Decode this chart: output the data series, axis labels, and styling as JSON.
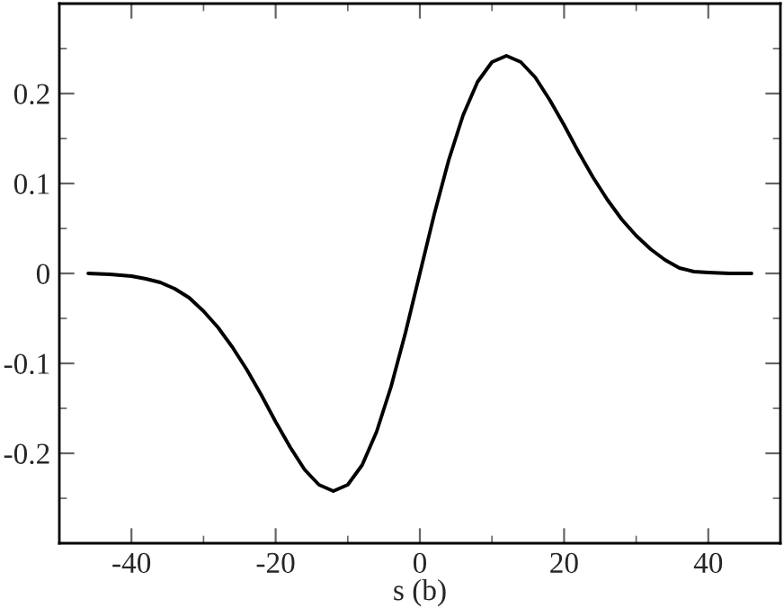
{
  "chart_data": {
    "type": "line",
    "xlabel": "s (b)",
    "xlim": [
      -50,
      50
    ],
    "xticks": [
      -40,
      -20,
      0,
      20,
      40
    ],
    "ylim": [
      -0.3,
      0.3
    ],
    "yticks": [
      {
        "value": -0.2,
        "label": "-0.2"
      },
      {
        "value": -0.1,
        "label": "-0.1"
      },
      0,
      0.1,
      0.2
    ],
    "grid": false,
    "legend": false,
    "marker": "none",
    "line_style": "solid",
    "series": [
      {
        "color": "#000000",
        "x": [
          -46,
          -43,
          -40,
          -38,
          -36,
          -34,
          -32,
          -30,
          -28,
          -26,
          -24,
          -22,
          -20,
          -18,
          -16,
          -14,
          -12,
          -10,
          -8,
          -6,
          -4,
          -2,
          0,
          2,
          4,
          6,
          8,
          10,
          12,
          14,
          16,
          18,
          20,
          22,
          24,
          26,
          28,
          30,
          32,
          34,
          36,
          38,
          40,
          43,
          46
        ],
        "values": [
          0,
          -0.001,
          -0.003,
          -0.006,
          -0.01,
          -0.017,
          -0.027,
          -0.042,
          -0.06,
          -0.082,
          -0.107,
          -0.135,
          -0.165,
          -0.193,
          -0.218,
          -0.235,
          -0.242,
          -0.235,
          -0.213,
          -0.176,
          -0.126,
          -0.066,
          0,
          0.066,
          0.126,
          0.176,
          0.213,
          0.235,
          0.242,
          0.235,
          0.218,
          0.193,
          0.165,
          0.135,
          0.107,
          0.082,
          0.06,
          0.042,
          0.027,
          0.015,
          0.006,
          0.002,
          0.001,
          0,
          0
        ]
      }
    ]
  }
}
